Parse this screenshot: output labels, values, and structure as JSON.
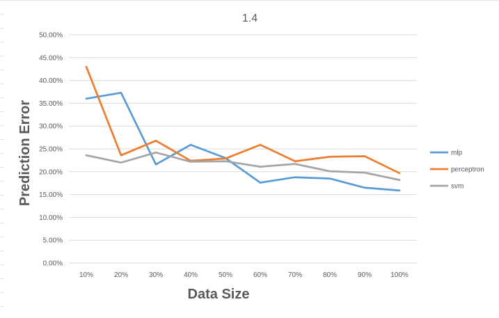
{
  "chart_data": {
    "type": "line",
    "title": "1.4",
    "xlabel": "Data Size",
    "ylabel": "Prediction Error",
    "categories": [
      "10%",
      "20%",
      "30%",
      "40%",
      "50%",
      "60%",
      "70%",
      "80%",
      "90%",
      "100%"
    ],
    "y_ticks": [
      "0.00%",
      "5.00%",
      "10.00%",
      "15.00%",
      "20.00%",
      "25.00%",
      "30.00%",
      "35.00%",
      "40.00%",
      "45.00%",
      "50.00%"
    ],
    "ylim": [
      0,
      50
    ],
    "grid": true,
    "legend_position": "right",
    "series": [
      {
        "name": "mlp",
        "color": "#5B9BD5",
        "values": [
          36.0,
          37.3,
          21.6,
          25.9,
          23.0,
          17.6,
          18.8,
          18.5,
          16.5,
          15.9
        ]
      },
      {
        "name": "perceptron",
        "color": "#ED7D31",
        "values": [
          43.0,
          23.6,
          26.8,
          22.4,
          22.9,
          25.9,
          22.3,
          23.3,
          23.4,
          19.7
        ]
      },
      {
        "name": "svm",
        "color": "#A5A5A5",
        "values": [
          23.6,
          22.0,
          24.2,
          22.2,
          22.3,
          21.1,
          21.7,
          20.1,
          19.8,
          18.2
        ]
      }
    ]
  }
}
